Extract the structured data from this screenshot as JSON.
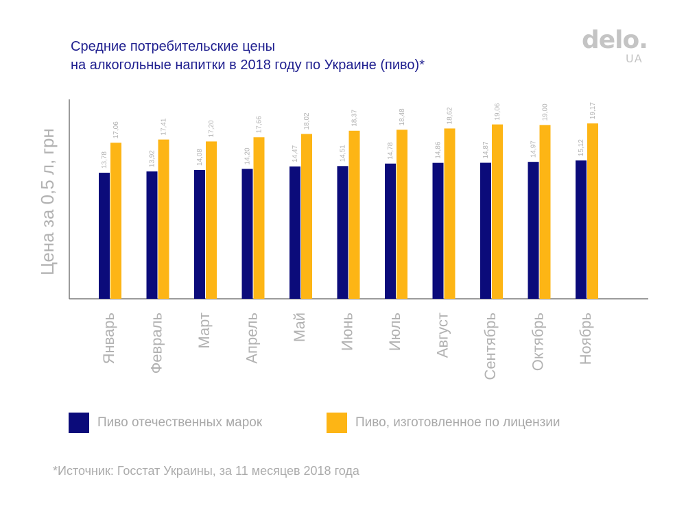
{
  "header": {
    "title_line1": "Средние потребительские цены",
    "title_line2": "на алкогольные напитки в 2018 году по Украине (пиво)*"
  },
  "logo": {
    "word": "delo.",
    "sub": "UA"
  },
  "colors": {
    "domestic": "#0b0b7a",
    "licensed": "#fdb515",
    "axis": "#7a7a7a",
    "muted": "#b2b2b2"
  },
  "chart_data": {
    "type": "bar",
    "title": "Средние потребительские цены на алкогольные напитки в 2018 году по Украине (пиво)*",
    "xlabel": "",
    "ylabel": "Цена за 0,5 л, грн",
    "ylim": [
      0,
      21.8
    ],
    "grid": false,
    "legend_position": "bottom",
    "categories": [
      "Январь",
      "Февраль",
      "Март",
      "Апрель",
      "Май",
      "Июнь",
      "Июль",
      "Август",
      "Сентябрь",
      "Октябрь",
      "Ноябрь"
    ],
    "series": [
      {
        "name": "Пиво отечественных марок",
        "color": "#0b0b7a",
        "values": [
          13.78,
          13.92,
          14.08,
          14.2,
          14.47,
          14.51,
          14.78,
          14.86,
          14.87,
          14.97,
          15.12
        ],
        "labels": [
          "13,78",
          "13,92",
          "14,08",
          "14,20",
          "14,47",
          "14,51",
          "14,78",
          "14,86",
          "14,87",
          "14,97",
          "15,12"
        ]
      },
      {
        "name": "Пиво, изготовленное по лицензии",
        "color": "#fdb515",
        "values": [
          17.06,
          17.41,
          17.2,
          17.66,
          18.02,
          18.37,
          18.48,
          18.62,
          19.06,
          19.0,
          19.17
        ],
        "labels": [
          "17,06",
          "17,41",
          "17,20",
          "17,66",
          "18,02",
          "18,37",
          "18,48",
          "18,62",
          "19,06",
          "19,00",
          "19,17"
        ]
      }
    ]
  },
  "legend": {
    "domestic_label": "Пиво отечественных марок",
    "licensed_label": "Пиво, изготовленное по лицензии"
  },
  "footnote": "*Источник: Госстат Украины, за 11 месяцев 2018 года"
}
